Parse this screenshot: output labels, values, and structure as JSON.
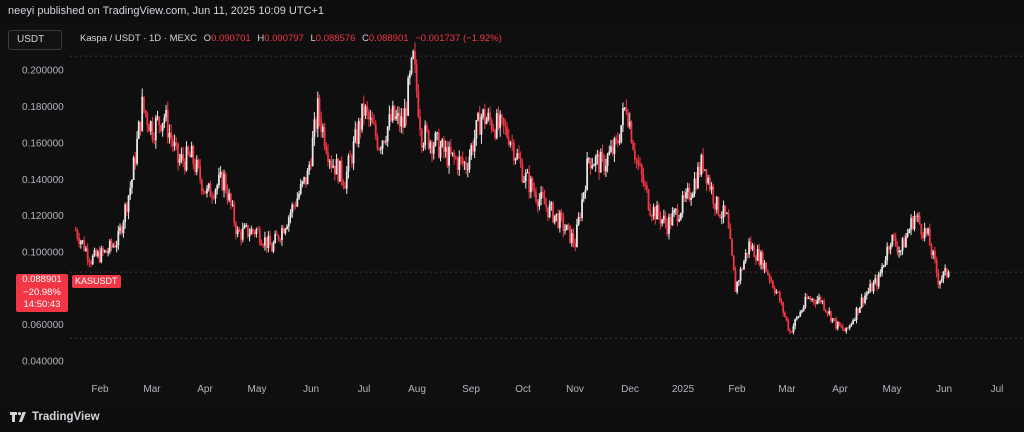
{
  "header": {
    "publisher_line": "neeyi published on TradingView.com, Jun 11, 2025 10:09 UTC+1"
  },
  "symbol_box": {
    "label": "USDT"
  },
  "legend": {
    "title": "Kaspa / USDT · 1D · MEXC",
    "o_label": "O",
    "o_value": "0.090701",
    "h_label": "H",
    "h_value": "0.090797",
    "l_label": "L",
    "l_value": "0.088576",
    "c_label": "C",
    "c_value": "0.088901",
    "change": "−0.001737 (−1.92%)"
  },
  "price_tag": {
    "price": "0.088901",
    "change": "−20.98%",
    "countdown": "14:50:43",
    "symbol": "KASUSDT"
  },
  "footer": {
    "brand": "TradingView"
  },
  "colors": {
    "up": "#e8e8e8",
    "down": "#f23645",
    "background": "#0f0f0f",
    "grid": "#2a2a2a"
  },
  "chart_data": {
    "type": "candlestick",
    "y_ticks": [
      "0.200000",
      "0.180000",
      "0.160000",
      "0.140000",
      "0.120000",
      "0.100000",
      "0.060000",
      "0.040000"
    ],
    "ylim": [
      0.034,
      0.21
    ],
    "y_dashed_lines": [
      0.2077,
      0.0525
    ],
    "last_price": 0.088901,
    "x_ticks": [
      "Feb",
      "Mar",
      "Apr",
      "May",
      "Jun",
      "Jul",
      "Aug",
      "Sep",
      "Oct",
      "Nov",
      "Dec",
      "2025",
      "Feb",
      "Mar",
      "Apr",
      "May",
      "Jun",
      "Jul"
    ],
    "month_closes": [
      [
        "2024-01-16",
        0.112
      ],
      [
        "2024-01-25",
        0.096
      ],
      [
        "2024-02-03",
        0.1
      ],
      [
        "2024-02-10",
        0.107
      ],
      [
        "2024-02-18",
        0.14
      ],
      [
        "2024-02-24",
        0.18
      ],
      [
        "2024-03-01",
        0.168
      ],
      [
        "2024-03-08",
        0.175
      ],
      [
        "2024-03-16",
        0.15
      ],
      [
        "2024-03-24",
        0.152
      ],
      [
        "2024-04-02",
        0.132
      ],
      [
        "2024-04-12",
        0.14
      ],
      [
        "2024-04-20",
        0.11
      ],
      [
        "2024-05-01",
        0.112
      ],
      [
        "2024-05-10",
        0.102
      ],
      [
        "2024-05-20",
        0.12
      ],
      [
        "2024-05-31",
        0.142
      ],
      [
        "2024-06-06",
        0.178
      ],
      [
        "2024-06-14",
        0.15
      ],
      [
        "2024-06-22",
        0.14
      ],
      [
        "2024-07-03",
        0.178
      ],
      [
        "2024-07-12",
        0.16
      ],
      [
        "2024-07-20",
        0.174
      ],
      [
        "2024-07-26",
        0.17
      ],
      [
        "2024-08-01",
        0.205
      ],
      [
        "2024-08-06",
        0.165
      ],
      [
        "2024-08-14",
        0.16
      ],
      [
        "2024-08-22",
        0.152
      ],
      [
        "2024-09-01",
        0.148
      ],
      [
        "2024-09-10",
        0.175
      ],
      [
        "2024-09-18",
        0.17
      ],
      [
        "2024-09-26",
        0.165
      ],
      [
        "2024-10-05",
        0.142
      ],
      [
        "2024-10-15",
        0.128
      ],
      [
        "2024-10-25",
        0.118
      ],
      [
        "2024-11-04",
        0.105
      ],
      [
        "2024-11-12",
        0.152
      ],
      [
        "2024-11-20",
        0.148
      ],
      [
        "2024-11-28",
        0.158
      ],
      [
        "2024-12-04",
        0.182
      ],
      [
        "2024-12-10",
        0.15
      ],
      [
        "2024-12-18",
        0.125
      ],
      [
        "2024-12-28",
        0.115
      ],
      [
        "2025-01-08",
        0.128
      ],
      [
        "2025-01-18",
        0.15
      ],
      [
        "2025-01-26",
        0.125
      ],
      [
        "2025-02-01",
        0.118
      ],
      [
        "2025-02-06",
        0.08
      ],
      [
        "2025-02-14",
        0.104
      ],
      [
        "2025-02-22",
        0.095
      ],
      [
        "2025-03-03",
        0.076
      ],
      [
        "2025-03-10",
        0.056
      ],
      [
        "2025-03-20",
        0.074
      ],
      [
        "2025-03-28",
        0.074
      ],
      [
        "2025-04-06",
        0.06
      ],
      [
        "2025-04-12",
        0.056
      ],
      [
        "2025-04-22",
        0.075
      ],
      [
        "2025-05-01",
        0.085
      ],
      [
        "2025-05-08",
        0.108
      ],
      [
        "2025-05-14",
        0.101
      ],
      [
        "2025-05-22",
        0.12
      ],
      [
        "2025-05-30",
        0.108
      ],
      [
        "2025-06-05",
        0.085
      ],
      [
        "2025-06-11",
        0.0889
      ]
    ]
  }
}
